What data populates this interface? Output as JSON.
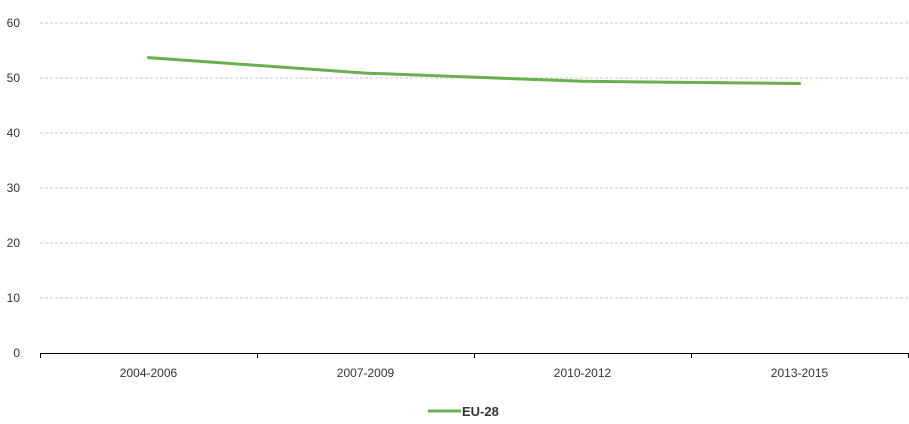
{
  "chart_data": {
    "type": "line",
    "title": "",
    "xlabel": "",
    "ylabel": "",
    "categories": [
      "2004-2006",
      "2007-2009",
      "2010-2012",
      "2013-2015"
    ],
    "series": [
      {
        "name": "EU-28",
        "values": [
          53.7,
          50.9,
          49.4,
          49.0
        ],
        "color": "#6ab04c"
      }
    ],
    "ylim": [
      0,
      60
    ],
    "yticks": [
      "0",
      "10",
      "20",
      "30",
      "40",
      "50",
      "60"
    ],
    "grid": true,
    "grid_style": "dashed",
    "legend": "bottom-center"
  }
}
